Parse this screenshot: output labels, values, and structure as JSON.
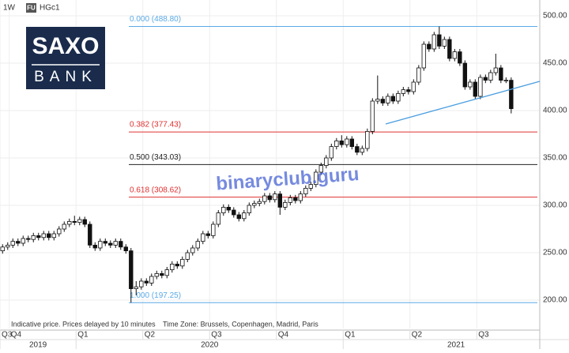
{
  "header": {
    "interval": "1W",
    "badge": "FU"
  },
  "logo": {
    "top": "SAXO",
    "bottom": "BANK"
  },
  "watermark": "binaryclub.guru",
  "footer": {
    "note": "Indicative price. Prices delayed by 10 minutes",
    "timezone": "Time Zone: Brussels, Copenhagen, Madrid, Paris"
  },
  "chart_data": {
    "type": "candlestick",
    "xlim": [
      -0.5,
      104.1
    ],
    "ylim": [
      170,
      516.67
    ],
    "yticks": [
      {
        "value": 200,
        "label": "200.00"
      },
      {
        "value": 250,
        "label": "250.00"
      },
      {
        "value": 300,
        "label": "300.00"
      },
      {
        "value": 350,
        "label": "350.00"
      },
      {
        "value": 400,
        "label": "400.00"
      },
      {
        "value": 450,
        "label": "450.00"
      },
      {
        "value": 500,
        "label": "500.00"
      }
    ],
    "xticks": [
      {
        "value": -0.5,
        "label": "Q3"
      },
      {
        "value": 1.3,
        "label": "Q4"
      },
      {
        "value": 14.3,
        "label": "Q1"
      },
      {
        "value": 27.3,
        "label": "Q2"
      },
      {
        "value": 40.3,
        "label": "Q3"
      },
      {
        "value": 53.3,
        "label": "Q4"
      },
      {
        "value": 66.3,
        "label": "Q1"
      },
      {
        "value": 79.3,
        "label": "Q2"
      },
      {
        "value": 92.3,
        "label": "Q3"
      }
    ],
    "year_ticks": [
      {
        "value": -0.5,
        "label": "2019"
      },
      {
        "value": 14.3,
        "label": "2020"
      },
      {
        "value": 66.3,
        "label": "2021"
      }
    ],
    "grid": true,
    "fib_levels": [
      {
        "value": 488.8,
        "label": "0.000 (488.80)",
        "color": "#5aa9e6"
      },
      {
        "value": 377.43,
        "label": "0.382 (377.43)",
        "color": "#e03030"
      },
      {
        "value": 343.03,
        "label": "0.500 (343.03)",
        "color": "#222222"
      },
      {
        "value": 308.62,
        "label": "0.618 (308.62)",
        "color": "#e03030"
      },
      {
        "value": 197.25,
        "label": "1.000 (197.25)",
        "color": "#5aa9e6"
      }
    ],
    "series": [
      {
        "name": "HGc1",
        "up_color": "#ffffff",
        "down_color": "#111111",
        "open": [
          252,
          256,
          258,
          262,
          260,
          265,
          264,
          268,
          266,
          270,
          266,
          270,
          275,
          280,
          283,
          282,
          285,
          280,
          258,
          255,
          262,
          260,
          258,
          262,
          256,
          252,
          212,
          214,
          220,
          218,
          225,
          228,
          226,
          232,
          238,
          236,
          243,
          250,
          255,
          262,
          270,
          268,
          280,
          292,
          298,
          295,
          290,
          286,
          292,
          300,
          302,
          304,
          310,
          306,
          312,
          298,
          303,
          308,
          305,
          312,
          318,
          322,
          335,
          342,
          350,
          362,
          368,
          364,
          370,
          362,
          356,
          360,
          378,
          410,
          412,
          408,
          415,
          410,
          418,
          422,
          420,
          430,
          445,
          470,
          465,
          480,
          468,
          475,
          455,
          462,
          450,
          425,
          430,
          415,
          435,
          432,
          440,
          445,
          432,
          432
        ],
        "high": [
          259,
          261,
          265,
          265,
          268,
          268,
          271,
          271,
          273,
          273,
          273,
          278,
          283,
          286,
          289,
          288,
          288,
          283,
          261,
          265,
          265,
          263,
          265,
          265,
          259,
          255,
          220,
          223,
          223,
          228,
          231,
          231,
          235,
          241,
          241,
          246,
          253,
          258,
          265,
          273,
          273,
          283,
          295,
          301,
          301,
          298,
          293,
          295,
          303,
          305,
          307,
          313,
          313,
          315,
          315,
          306,
          311,
          311,
          315,
          321,
          325,
          338,
          345,
          353,
          365,
          371,
          374,
          373,
          373,
          365,
          363,
          381,
          413,
          437,
          415,
          418,
          418,
          421,
          425,
          425,
          433,
          448,
          473,
          473,
          483,
          488.8,
          478,
          478,
          465,
          465,
          453,
          433,
          433,
          438,
          438,
          443,
          460,
          448,
          435,
          435
        ],
        "low": [
          249,
          253,
          255,
          257,
          257,
          261,
          261,
          263,
          263,
          263,
          263,
          267,
          272,
          277,
          279,
          279,
          277,
          255,
          252,
          252,
          257,
          255,
          255,
          253,
          249,
          197.25,
          205,
          211,
          215,
          215,
          222,
          223,
          223,
          229,
          233,
          233,
          240,
          247,
          252,
          259,
          265,
          265,
          277,
          289,
          292,
          287,
          283,
          283,
          289,
          297,
          299,
          301,
          303,
          303,
          290,
          295,
          300,
          302,
          302,
          309,
          315,
          319,
          332,
          339,
          347,
          359,
          361,
          361,
          359,
          353,
          353,
          357,
          375,
          407,
          405,
          405,
          407,
          407,
          415,
          417,
          417,
          427,
          442,
          462,
          462,
          465,
          465,
          452,
          452,
          447,
          422,
          422,
          412,
          412,
          429,
          429,
          437,
          429,
          429,
          397
        ],
        "close": [
          256,
          258,
          262,
          260,
          265,
          264,
          268,
          266,
          270,
          266,
          270,
          275,
          280,
          283,
          282,
          285,
          280,
          258,
          255,
          262,
          260,
          258,
          262,
          256,
          252,
          212,
          214,
          220,
          218,
          225,
          228,
          226,
          232,
          238,
          236,
          243,
          250,
          255,
          262,
          270,
          268,
          280,
          292,
          298,
          295,
          290,
          286,
          292,
          300,
          302,
          304,
          310,
          306,
          312,
          298,
          303,
          308,
          305,
          312,
          318,
          322,
          335,
          342,
          350,
          362,
          368,
          364,
          370,
          362,
          356,
          360,
          378,
          410,
          412,
          408,
          415,
          410,
          418,
          422,
          420,
          430,
          445,
          470,
          465,
          480,
          468,
          475,
          455,
          462,
          450,
          425,
          430,
          415,
          435,
          432,
          440,
          445,
          432,
          432,
          402
        ]
      }
    ]
  }
}
